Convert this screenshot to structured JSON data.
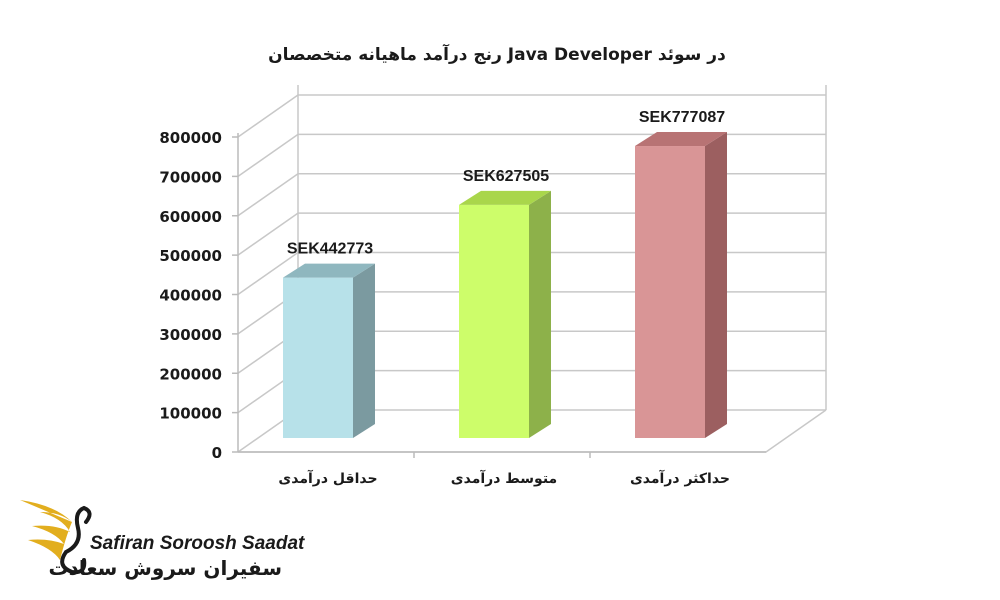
{
  "chart_data": {
    "type": "bar",
    "title": "رنج درآمد ماهیانه متخصصان Java Developer در سوئد",
    "categories": [
      "حداقل درآمدی",
      "متوسط درآمدی",
      "حداکثر درآمدی"
    ],
    "values": [
      442773,
      627505,
      777087
    ],
    "data_labels": [
      "SEK442773",
      "SEK627505",
      "SEK777087"
    ],
    "colors": [
      "#b7e1e9",
      "#cdfd6a",
      "#d99596"
    ],
    "side_colors": [
      "#7b9aa0",
      "#8db14a",
      "#9c5f60"
    ],
    "top_colors": [
      "#8fb7bf",
      "#a9d64b",
      "#b87374"
    ],
    "ylim": [
      0,
      800000
    ],
    "y_ticks": [
      "0",
      "100000",
      "200000",
      "300000",
      "400000",
      "500000",
      "600000",
      "700000",
      "800000"
    ],
    "grid": true,
    "legend": "none"
  },
  "branding": {
    "name_en": "Safiran Soroosh Saadat",
    "name_fa": "سفیران سروش سعادت"
  }
}
